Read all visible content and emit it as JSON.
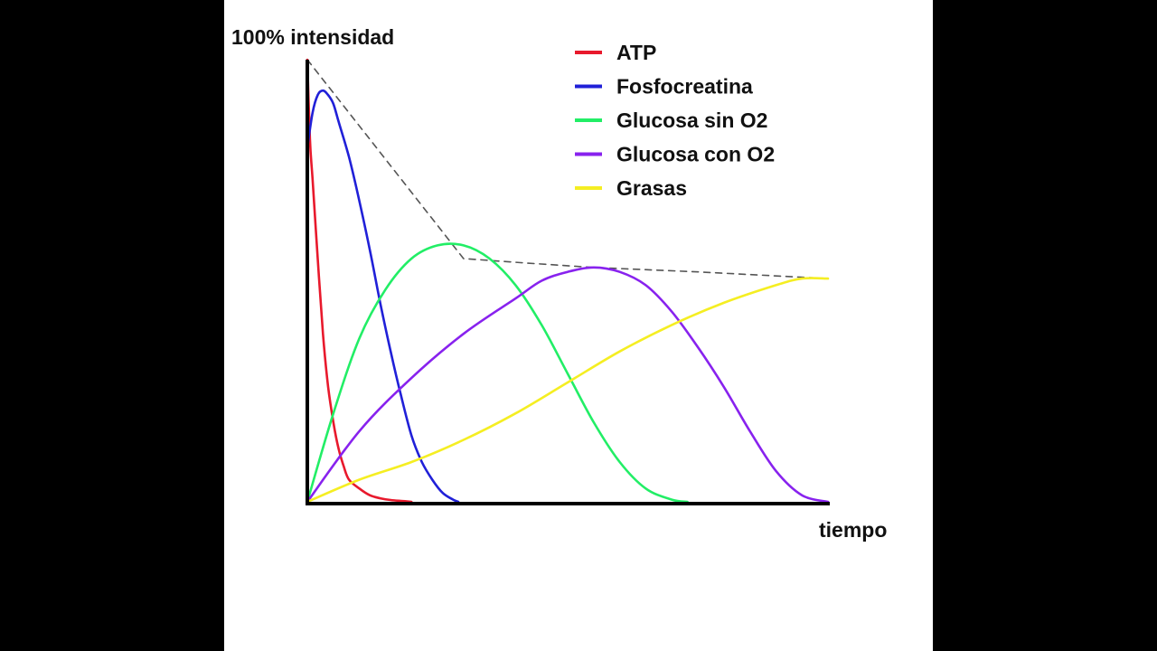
{
  "chart_data": {
    "type": "line",
    "title": "",
    "ylabel": "100% intensidad",
    "xlabel": "tiempo",
    "xlim": [
      0,
      100
    ],
    "ylim": [
      0,
      100
    ],
    "grid": false,
    "legend_position": "top-right",
    "series": [
      {
        "name": "ATP",
        "color": "#e8192c",
        "x": [
          0,
          0.5,
          1,
          2,
          3,
          4,
          5,
          6,
          7,
          8,
          10,
          12,
          14,
          16,
          18,
          20
        ],
        "y": [
          100,
          82,
          73,
          55,
          38,
          26,
          18,
          12,
          8,
          5,
          3,
          1.5,
          0.8,
          0.4,
          0.2,
          0
        ]
      },
      {
        "name": "Fosfocreatina",
        "color": "#2020d8",
        "x": [
          0,
          1,
          2,
          3,
          4,
          5,
          6,
          8,
          10,
          12,
          14,
          16,
          18,
          20,
          22,
          24,
          26,
          28,
          29
        ],
        "y": [
          80,
          88,
          92,
          93,
          92,
          90,
          86,
          78,
          68,
          57,
          45,
          34,
          24,
          15,
          9,
          5,
          2,
          0.5,
          0
        ]
      },
      {
        "name": "Glucosa sin O2",
        "color": "#22ee66",
        "x": [
          0,
          5,
          10,
          15,
          20,
          25,
          30,
          35,
          40,
          45,
          50,
          55,
          60,
          65,
          70,
          73
        ],
        "y": [
          0,
          20,
          37,
          48,
          55,
          58,
          58,
          55,
          49,
          40,
          29,
          18,
          9,
          3,
          0.5,
          0
        ]
      },
      {
        "name": "Glucosa con O2",
        "color": "#8822ee",
        "x": [
          0,
          10,
          20,
          30,
          40,
          45,
          50,
          55,
          60,
          65,
          70,
          75,
          80,
          85,
          90,
          95,
          100
        ],
        "y": [
          0,
          16,
          28,
          38,
          46,
          50,
          52,
          53,
          52,
          49,
          43,
          35,
          26,
          16,
          7,
          1.5,
          0
        ]
      },
      {
        "name": "Grasas",
        "color": "#f5ee22",
        "x": [
          0,
          10,
          20,
          30,
          40,
          50,
          60,
          70,
          80,
          90,
          95,
          100
        ],
        "y": [
          0,
          5,
          9,
          14,
          20,
          27,
          34,
          40,
          45,
          49,
          50.5,
          50.5
        ]
      },
      {
        "name": "",
        "color": "#555555",
        "dashed": true,
        "x": [
          0,
          30,
          42,
          55,
          75,
          100
        ],
        "y": [
          100,
          55,
          54,
          53,
          52,
          50.5
        ]
      }
    ]
  }
}
